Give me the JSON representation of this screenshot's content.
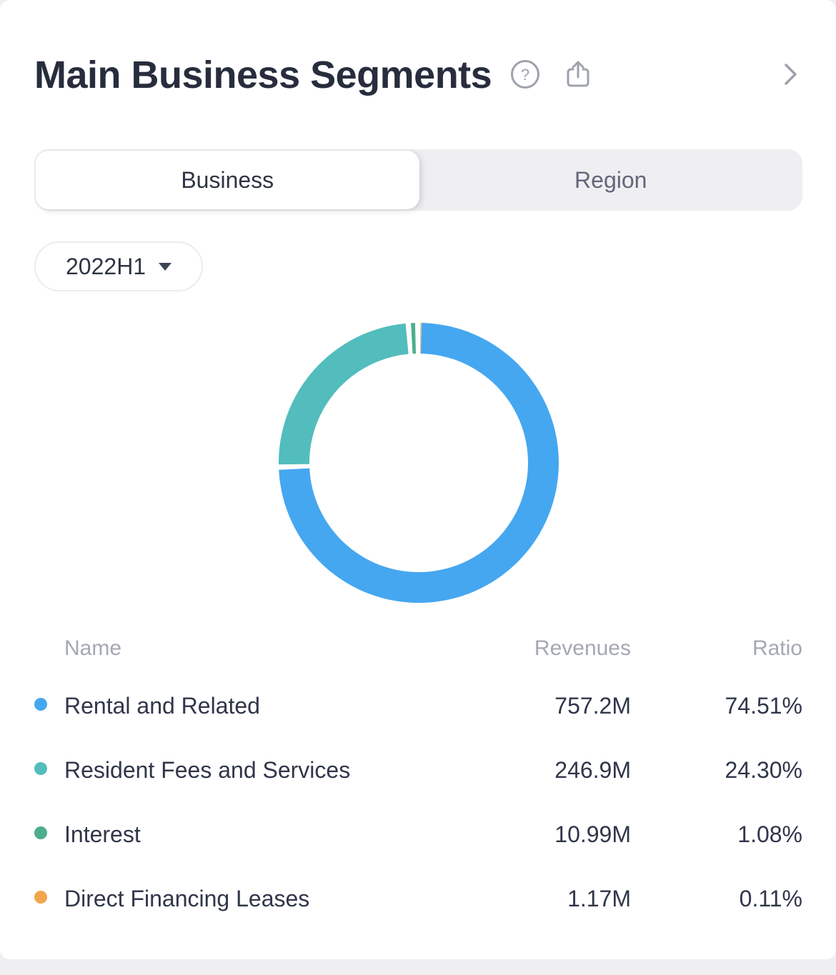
{
  "header": {
    "title": "Main Business Segments",
    "icons": {
      "help": "question-mark-circle",
      "share": "share-export",
      "chevron": "chevron-right"
    },
    "icon_color": "#9ea2ac"
  },
  "tabs": [
    {
      "label": "Business",
      "active": true
    },
    {
      "label": "Region",
      "active": false
    }
  ],
  "period_selector": {
    "value": "2022H1"
  },
  "table": {
    "columns": [
      "Name",
      "Revenues",
      "Ratio"
    ]
  },
  "chart_data": {
    "type": "pie",
    "title": "Main Business Segments — Business split, 2022H1",
    "donut": {
      "outer_radius": 196,
      "inner_radius": 153,
      "start_angle_deg": 0,
      "pad_angle_deg": 2.2,
      "direction": "clockwise"
    },
    "items": [
      {
        "name": "Rental and Related",
        "revenue": "757.2M",
        "ratio": "74.51%",
        "value": 74.51,
        "color": "#45a7f0"
      },
      {
        "name": "Resident Fees and Services",
        "revenue": "246.9M",
        "ratio": "24.30%",
        "value": 24.3,
        "color": "#52bdbc"
      },
      {
        "name": "Interest",
        "revenue": "10.99M",
        "ratio": "1.08%",
        "value": 1.08,
        "color": "#4cae8c"
      },
      {
        "name": "Direct Financing Leases",
        "revenue": "1.17M",
        "ratio": "0.11%",
        "value": 0.11,
        "color": "#f2a54c"
      }
    ]
  }
}
